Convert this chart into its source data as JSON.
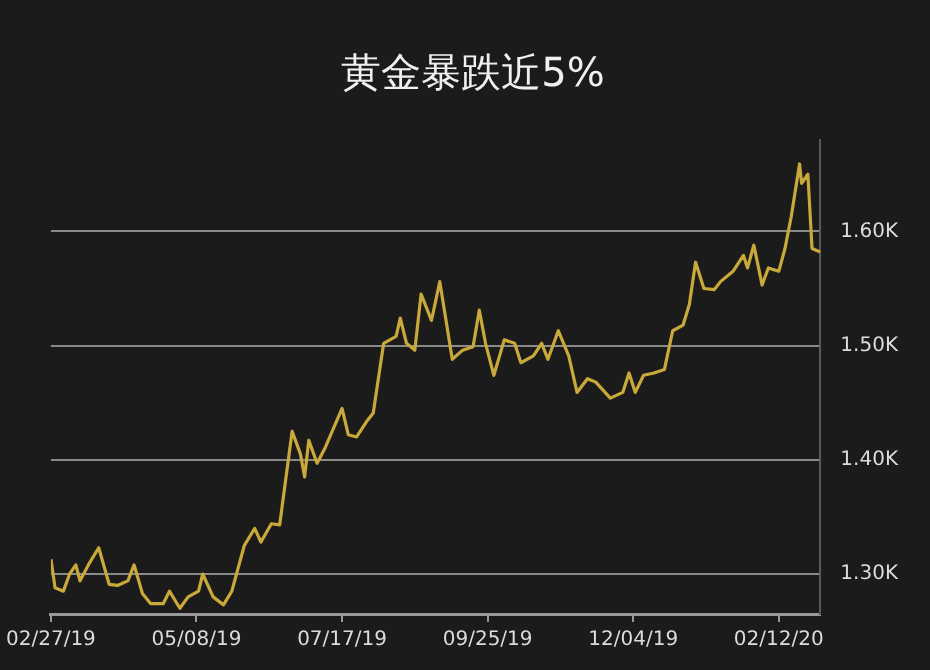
{
  "chart_data": {
    "type": "line",
    "title": "黄金暴跌近5%",
    "x": [
      "2019-02-27",
      "2019-03-01",
      "2019-03-05",
      "2019-03-08",
      "2019-03-11",
      "2019-03-13",
      "2019-03-17",
      "2019-03-22",
      "2019-03-27",
      "2019-03-31",
      "2019-04-05",
      "2019-04-08",
      "2019-04-12",
      "2019-04-16",
      "2019-04-22",
      "2019-04-25",
      "2019-04-30",
      "2019-05-04",
      "2019-05-09",
      "2019-05-11",
      "2019-05-16",
      "2019-05-21",
      "2019-05-25",
      "2019-05-31",
      "2019-06-05",
      "2019-06-08",
      "2019-06-13",
      "2019-06-17",
      "2019-06-23",
      "2019-06-27",
      "2019-06-29",
      "2019-07-01",
      "2019-07-05",
      "2019-07-09",
      "2019-07-17",
      "2019-07-20",
      "2019-07-24",
      "2019-07-29",
      "2019-08-01",
      "2019-08-06",
      "2019-08-12",
      "2019-08-14",
      "2019-08-17",
      "2019-08-21",
      "2019-08-24",
      "2019-08-29",
      "2019-09-02",
      "2019-09-08",
      "2019-09-13",
      "2019-09-18",
      "2019-09-21",
      "2019-09-24",
      "2019-09-28",
      "2019-10-03",
      "2019-10-08",
      "2019-10-11",
      "2019-10-17",
      "2019-10-21",
      "2019-10-24",
      "2019-10-29",
      "2019-11-03",
      "2019-11-07",
      "2019-11-12",
      "2019-11-16",
      "2019-11-23",
      "2019-11-29",
      "2019-12-02",
      "2019-12-05",
      "2019-12-09",
      "2019-12-14",
      "2019-12-19",
      "2019-12-23",
      "2019-12-28",
      "2019-12-31",
      "2020-01-03",
      "2020-01-07",
      "2020-01-12",
      "2020-01-15",
      "2020-01-21",
      "2020-01-26",
      "2020-01-28",
      "2020-01-31",
      "2020-02-04",
      "2020-02-07",
      "2020-02-12",
      "2020-02-15",
      "2020-02-18",
      "2020-02-22",
      "2020-02-23",
      "2020-02-26",
      "2020-02-28",
      "2020-03-03"
    ],
    "series": [
      {
        "color": "#c9a93a",
        "values": [
          1313,
          1288,
          1285,
          1300,
          1308,
          1294,
          1308,
          1323,
          1291,
          1290,
          1294,
          1308,
          1283,
          1274,
          1274,
          1285,
          1270,
          1280,
          1285,
          1300,
          1280,
          1273,
          1285,
          1325,
          1340,
          1328,
          1344,
          1343,
          1425,
          1405,
          1385,
          1417,
          1397,
          1411,
          1445,
          1422,
          1420,
          1434,
          1441,
          1502,
          1508,
          1524,
          1502,
          1496,
          1545,
          1522,
          1556,
          1488,
          1496,
          1499,
          1531,
          1502,
          1474,
          1505,
          1502,
          1485,
          1491,
          1502,
          1488,
          1513,
          1491,
          1459,
          1471,
          1468,
          1454,
          1459,
          1476,
          1459,
          1474,
          1476,
          1479,
          1513,
          1518,
          1536,
          1573,
          1550,
          1549,
          1556,
          1565,
          1579,
          1568,
          1588,
          1553,
          1568,
          1565,
          1585,
          1613,
          1659,
          1642,
          1650,
          1585,
          1582
        ]
      }
    ],
    "xlim": [
      "2019-02-27",
      "2020-03-03"
    ],
    "xticks": [
      {
        "value": "2019-02-27",
        "label": "02/27/19"
      },
      {
        "value": "2019-05-08",
        "label": "05/08/19"
      },
      {
        "value": "2019-07-17",
        "label": "07/17/19"
      },
      {
        "value": "2019-09-25",
        "label": "09/25/19"
      },
      {
        "value": "2019-12-04",
        "label": "12/04/19"
      },
      {
        "value": "2020-02-12",
        "label": "02/12/20"
      }
    ],
    "ylim": [
      1265,
      1680
    ],
    "yticks": [
      {
        "value": 1300,
        "label": "1.30K"
      },
      {
        "value": 1400,
        "label": "1.40K"
      },
      {
        "value": 1500,
        "label": "1.50K"
      },
      {
        "value": 1600,
        "label": "1.60K"
      }
    ],
    "grid": "y",
    "line_style": "solid",
    "marker": "none",
    "legend": false
  }
}
